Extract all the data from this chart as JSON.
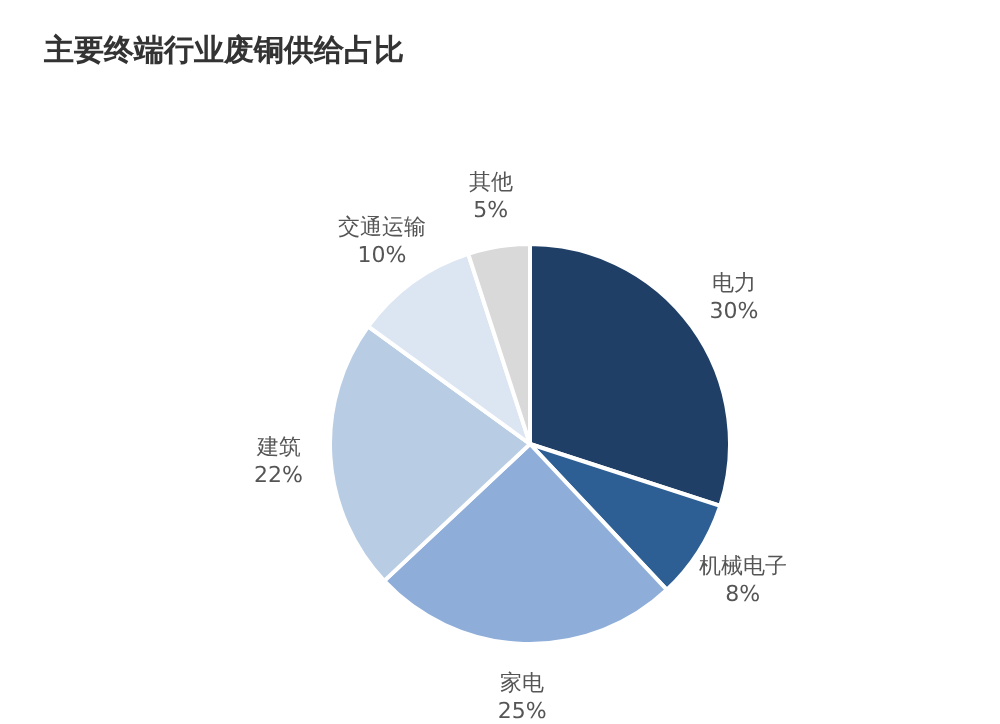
{
  "chart_data": {
    "type": "pie",
    "title": "主要终端行业废铜供给占比",
    "categories": [
      "电力",
      "机械电子",
      "家电",
      "建筑",
      "交通运输",
      "其他"
    ],
    "values": [
      30,
      8,
      25,
      22,
      10,
      5
    ],
    "value_labels": [
      "30%",
      "8%",
      "25%",
      "22%",
      "10%",
      "5%"
    ],
    "colors": [
      "#1f3f66",
      "#2e5f94",
      "#8eaed9",
      "#b8cce4",
      "#dce6f2",
      "#d9d9d9"
    ]
  }
}
